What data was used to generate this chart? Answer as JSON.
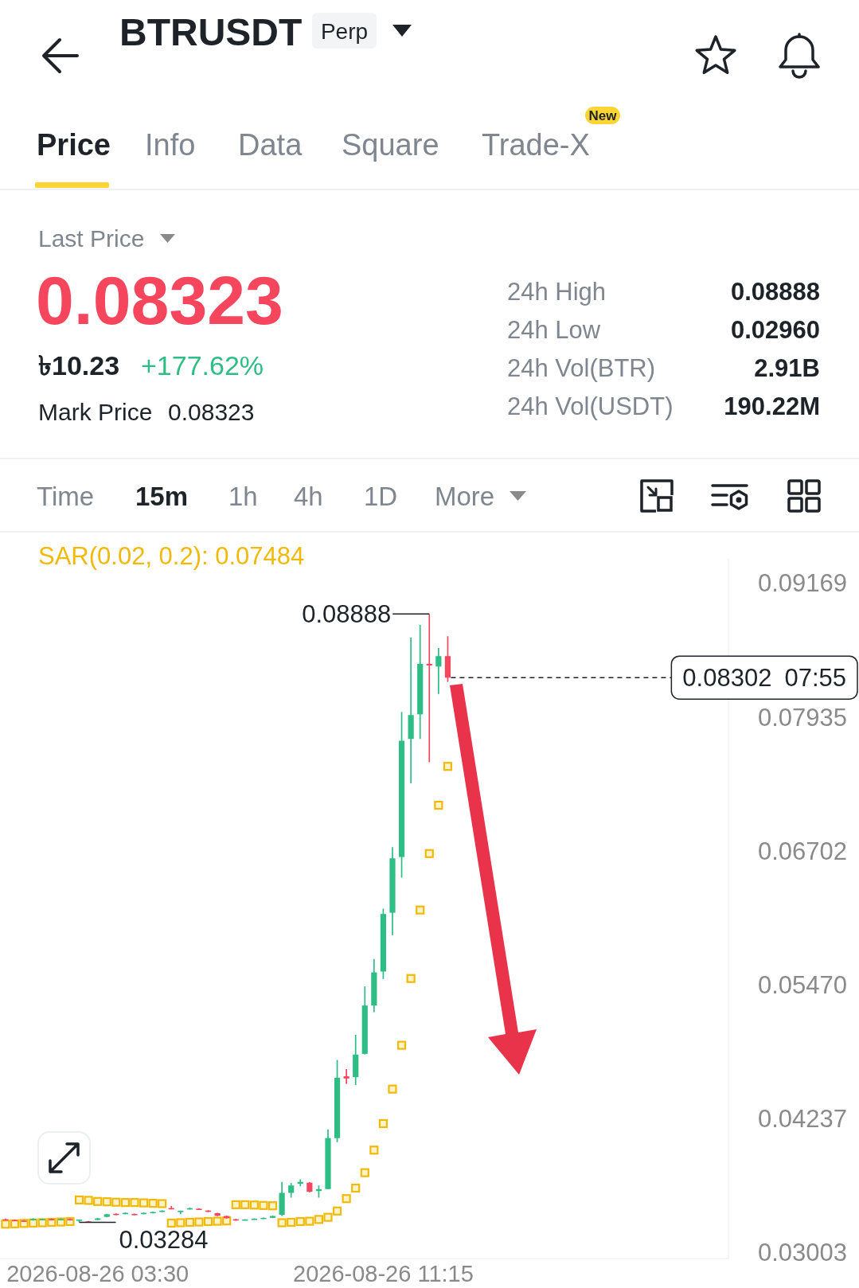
{
  "chart_data": [
    {
      "type": "other",
      "title": "BTRUSDT",
      "annotations": [
        "Perp",
        "Price",
        "Info",
        "Data",
        "Square",
        "Trade-X",
        "New",
        "Last Price",
        "0.08323",
        "৳10.23",
        "+177.62%",
        "Mark Price",
        "0.08323",
        "24h High",
        "0.08888",
        "24h Low",
        "0.02960",
        "24h Vol(BTR)",
        "2.91B",
        "24h Vol(USDT)",
        "190.22M",
        "Time",
        "15m",
        "1h",
        "4h",
        "1D",
        "More"
      ]
    },
    {
      "type": "candlestick",
      "x": [
        "2026-08-26T01:00",
        "2026-08-26T01:15",
        "2026-08-26T01:30",
        "2026-08-26T01:45",
        "2026-08-26T02:00",
        "2026-08-26T02:15",
        "2026-08-26T02:30",
        "2026-08-26T02:45",
        "2026-08-26T03:00",
        "2026-08-26T03:15",
        "2026-08-26T03:30",
        "2026-08-26T03:45",
        "2026-08-26T04:00",
        "2026-08-26T04:15",
        "2026-08-26T04:30",
        "2026-08-26T04:45",
        "2026-08-26T05:00",
        "2026-08-26T05:15",
        "2026-08-26T05:30",
        "2026-08-26T05:45",
        "2026-08-26T06:00",
        "2026-08-26T06:15",
        "2026-08-26T06:30",
        "2026-08-26T06:45",
        "2026-08-26T07:00",
        "2026-08-26T07:15",
        "2026-08-26T07:30",
        "2026-08-26T07:45",
        "2026-08-26T08:00",
        "2026-08-26T08:15",
        "2026-08-26T08:30",
        "2026-08-26T08:45",
        "2026-08-26T09:00",
        "2026-08-26T09:15",
        "2026-08-26T09:30",
        "2026-08-26T09:45",
        "2026-08-26T10:00",
        "2026-08-26T10:15",
        "2026-08-26T10:30",
        "2026-08-26T10:45",
        "2026-08-26T11:00",
        "2026-08-26T11:15",
        "2026-08-26T11:30",
        "2026-08-26T11:45",
        "2026-08-26T12:00",
        "2026-08-26T12:15",
        "2026-08-26T12:30",
        "2026-08-26T12:45",
        "2026-08-26T13:00"
      ],
      "ohlc": [
        [
          0.03312,
          0.03318,
          0.03301,
          0.03305
        ],
        [
          0.03305,
          0.0331,
          0.03294,
          0.03298
        ],
        [
          0.033,
          0.03304,
          0.0329,
          0.03293
        ],
        [
          0.03304,
          0.03321,
          0.033,
          0.03316
        ],
        [
          0.03308,
          0.03318,
          0.03304,
          0.03314
        ],
        [
          0.03314,
          0.03318,
          0.03301,
          0.03306
        ],
        [
          0.03304,
          0.03318,
          0.03301,
          0.03314
        ],
        [
          0.03314,
          0.03318,
          0.03301,
          0.03306
        ],
        [
          0.03305,
          0.0331,
          0.03284,
          0.03309
        ],
        [
          0.03292,
          0.03297,
          0.03285,
          0.03286
        ],
        [
          0.03306,
          0.03325,
          0.03303,
          0.0332
        ],
        [
          0.03334,
          0.03362,
          0.0333,
          0.03358
        ],
        [
          0.03362,
          0.03366,
          0.0335,
          0.03352
        ],
        [
          0.03361,
          0.03375,
          0.03358,
          0.03371
        ],
        [
          0.03361,
          0.03365,
          0.0335,
          0.03352
        ],
        [
          0.03361,
          0.03375,
          0.03358,
          0.03371
        ],
        [
          0.03369,
          0.03382,
          0.03366,
          0.03379
        ],
        [
          0.0338,
          0.03395,
          0.03377,
          0.03391
        ],
        [
          0.03415,
          0.03435,
          0.03404,
          0.03406
        ],
        [
          0.03378,
          0.03392,
          0.03358,
          0.0339
        ],
        [
          0.03404,
          0.03419,
          0.03401,
          0.03414
        ],
        [
          0.03409,
          0.03412,
          0.03399,
          0.03402
        ],
        [
          0.03392,
          0.03395,
          0.03378,
          0.03382
        ],
        [
          0.03368,
          0.03371,
          0.0334,
          0.03344
        ],
        [
          0.03342,
          0.03345,
          0.03318,
          0.03322
        ],
        [
          0.03312,
          0.03315,
          0.03299,
          0.03308
        ],
        [
          0.03306,
          0.03312,
          0.03303,
          0.0331
        ],
        [
          0.0331,
          0.0332,
          0.03308,
          0.03317
        ],
        [
          0.03317,
          0.03328,
          0.03315,
          0.03325
        ],
        [
          0.03325,
          0.03345,
          0.03322,
          0.03342
        ],
        [
          0.03353,
          0.03656,
          0.03343,
          0.03555
        ],
        [
          0.03555,
          0.03646,
          0.03511,
          0.03623
        ],
        [
          0.03639,
          0.0368,
          0.03616,
          0.03656
        ],
        [
          0.03649,
          0.03655,
          0.0356,
          0.03566
        ],
        [
          0.03572,
          0.03623,
          0.03511,
          0.03589
        ],
        [
          0.0359,
          0.0414,
          0.0359,
          0.0406
        ],
        [
          0.04059,
          0.0478,
          0.04022,
          0.04616
        ],
        [
          0.04629,
          0.04695,
          0.0456,
          0.04609
        ],
        [
          0.04621,
          0.05012,
          0.04548,
          0.04829
        ],
        [
          0.04836,
          0.05457,
          0.0483,
          0.05281
        ],
        [
          0.05281,
          0.05709,
          0.0522,
          0.05586
        ],
        [
          0.05594,
          0.06173,
          0.05525,
          0.06124
        ],
        [
          0.06136,
          0.0674,
          0.05929,
          0.06637
        ],
        [
          0.06649,
          0.07986,
          0.06459,
          0.0772
        ],
        [
          0.07737,
          0.08673,
          0.07329,
          0.07957
        ],
        [
          0.07964,
          0.08788,
          0.07737,
          0.08429
        ],
        [
          0.08429,
          0.08888,
          0.07522,
          0.08414
        ],
        [
          0.08404,
          0.08575,
          0.08152,
          0.085
        ],
        [
          0.085,
          0.08683,
          0.08262,
          0.08302
        ]
      ],
      "colors": [
        "#f6465d",
        "#f6465d",
        "#f6465d",
        "#2ebd85",
        "#2ebd85",
        "#f6465d",
        "#2ebd85",
        "#f6465d",
        "#2ebd85",
        "#f6465d",
        "#2ebd85",
        "#2ebd85",
        "#f6465d",
        "#2ebd85",
        "#f6465d",
        "#2ebd85",
        "#2ebd85",
        "#2ebd85",
        "#f6465d",
        "#2ebd85",
        "#2ebd85",
        "#f6465d",
        "#f6465d",
        "#f6465d",
        "#f6465d",
        "#f6465d",
        "#2ebd85",
        "#2ebd85",
        "#2ebd85",
        "#2ebd85",
        "#2ebd85",
        "#2ebd85",
        "#2ebd85",
        "#f6465d",
        "#2ebd85",
        "#2ebd85",
        "#2ebd85",
        "#f6465d",
        "#2ebd85",
        "#2ebd85",
        "#2ebd85",
        "#2ebd85",
        "#2ebd85",
        "#2ebd85",
        "#2ebd85",
        "#2ebd85",
        "#f6465d",
        "#2ebd85",
        "#f6465d"
      ],
      "series": [
        {
          "type": "scatter",
          "name": "SAR(0.02, 0.2): 0.07484",
          "color": "#f0b90b",
          "marker": "square",
          "values": [
            0.03267,
            0.0327,
            0.03274,
            0.03277,
            0.0328,
            0.03284,
            0.03287,
            0.03291,
            0.0349,
            0.03486,
            0.03476,
            0.03473,
            0.03469,
            0.03466,
            0.03466,
            0.03463,
            0.03459,
            0.03456,
            0.03277,
            0.0328,
            0.03284,
            0.03287,
            0.03291,
            0.03294,
            0.03297,
            0.03446,
            0.03446,
            0.03443,
            0.03439,
            0.03436,
            0.0328,
            0.03284,
            0.03291,
            0.03294,
            0.0331,
            0.0333,
            0.03388,
            0.03502,
            0.03599,
            0.03741,
            0.03949,
            0.04193,
            0.04511,
            0.04915,
            0.0553,
            0.06161,
            0.06681,
            0.07126,
            0.07484
          ]
        }
      ],
      "xlim": [
        "2026-08-26T00:51",
        "2026-08-26T20:37"
      ],
      "xticks": [
        {
          "value": "2026-08-26T03:30",
          "label": "2026-08-26 03:30"
        },
        {
          "value": "2026-08-26T11:15",
          "label": "2026-08-26 11:15"
        }
      ],
      "ylim": [
        0.0295,
        0.094
      ],
      "yticks": [
        0.03003,
        0.04237,
        {
          "value": 0.0547,
          "label": "0.05470"
        },
        0.06702,
        0.07935,
        0.09169
      ],
      "ref_lines": [
        {
          "axis": "y",
          "value": 0.08302,
          "line_style": "dashed",
          "color": "#1e2329"
        }
      ],
      "annotations": [
        {
          "text": "0.08888",
          "x": "2026-08-26T12:30",
          "y": 0.08888
        },
        {
          "text": "0.03284",
          "x": "2026-08-26T03:00",
          "y": 0.03284
        },
        "0.08302\n07:55"
      ],
      "legend": "top left"
    }
  ]
}
